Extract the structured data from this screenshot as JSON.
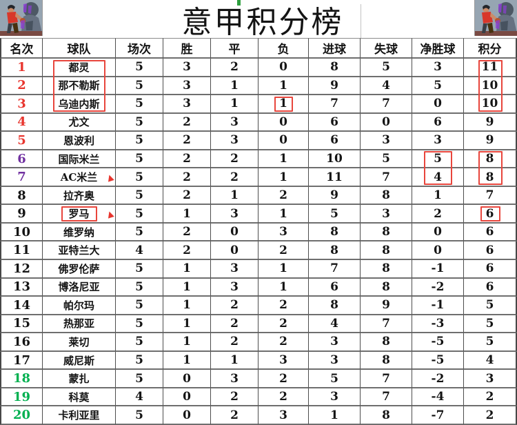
{
  "title": "意甲积分榜",
  "columns": [
    "名次",
    "球队",
    "场次",
    "胜",
    "平",
    "负",
    "进球",
    "失球",
    "净胜球",
    "积分"
  ],
  "column_keys": [
    "rank",
    "team",
    "played",
    "won",
    "drawn",
    "lost",
    "goals_for",
    "goals_against",
    "goal_diff",
    "points"
  ],
  "rows": [
    {
      "rank": "1",
      "rank_color": "red",
      "team": "都灵",
      "played": "5",
      "won": "3",
      "drawn": "2",
      "lost": "0",
      "goals_for": "8",
      "goals_against": "5",
      "goal_diff": "3",
      "points": "11",
      "arrow": false
    },
    {
      "rank": "2",
      "rank_color": "red",
      "team": "那不勒斯",
      "played": "5",
      "won": "3",
      "drawn": "1",
      "lost": "1",
      "goals_for": "9",
      "goals_against": "4",
      "goal_diff": "5",
      "points": "10",
      "arrow": false
    },
    {
      "rank": "3",
      "rank_color": "red",
      "team": "乌迪内斯",
      "played": "5",
      "won": "3",
      "drawn": "1",
      "lost": "1",
      "goals_for": "7",
      "goals_against": "7",
      "goal_diff": "0",
      "points": "10",
      "arrow": false
    },
    {
      "rank": "4",
      "rank_color": "red",
      "team": "尤文",
      "played": "5",
      "won": "2",
      "drawn": "3",
      "lost": "0",
      "goals_for": "6",
      "goals_against": "0",
      "goal_diff": "6",
      "points": "9",
      "arrow": false
    },
    {
      "rank": "5",
      "rank_color": "red",
      "team": "恩波利",
      "played": "5",
      "won": "2",
      "drawn": "3",
      "lost": "0",
      "goals_for": "6",
      "goals_against": "3",
      "goal_diff": "3",
      "points": "9",
      "arrow": false
    },
    {
      "rank": "6",
      "rank_color": "purple",
      "team": "国际米兰",
      "played": "5",
      "won": "2",
      "drawn": "2",
      "lost": "1",
      "goals_for": "10",
      "goals_against": "5",
      "goal_diff": "5",
      "points": "8",
      "arrow": false
    },
    {
      "rank": "7",
      "rank_color": "purple",
      "team": "AC米兰",
      "played": "5",
      "won": "2",
      "drawn": "2",
      "lost": "1",
      "goals_for": "11",
      "goals_against": "7",
      "goal_diff": "4",
      "points": "8",
      "arrow": true
    },
    {
      "rank": "8",
      "rank_color": "black",
      "team": "拉齐奥",
      "played": "5",
      "won": "2",
      "drawn": "1",
      "lost": "2",
      "goals_for": "9",
      "goals_against": "8",
      "goal_diff": "1",
      "points": "7",
      "arrow": false
    },
    {
      "rank": "9",
      "rank_color": "black",
      "team": "罗马",
      "played": "5",
      "won": "1",
      "drawn": "3",
      "lost": "1",
      "goals_for": "5",
      "goals_against": "3",
      "goal_diff": "2",
      "points": "6",
      "arrow": true
    },
    {
      "rank": "10",
      "rank_color": "black",
      "team": "维罗纳",
      "played": "5",
      "won": "2",
      "drawn": "0",
      "lost": "3",
      "goals_for": "8",
      "goals_against": "8",
      "goal_diff": "0",
      "points": "6",
      "arrow": false
    },
    {
      "rank": "11",
      "rank_color": "black",
      "team": "亚特兰大",
      "played": "4",
      "won": "2",
      "drawn": "0",
      "lost": "2",
      "goals_for": "8",
      "goals_against": "8",
      "goal_diff": "0",
      "points": "6",
      "arrow": false
    },
    {
      "rank": "12",
      "rank_color": "black",
      "team": "佛罗伦萨",
      "played": "5",
      "won": "1",
      "drawn": "3",
      "lost": "1",
      "goals_for": "7",
      "goals_against": "8",
      "goal_diff": "-1",
      "points": "6",
      "arrow": false
    },
    {
      "rank": "13",
      "rank_color": "black",
      "team": "博洛尼亚",
      "played": "5",
      "won": "1",
      "drawn": "3",
      "lost": "1",
      "goals_for": "6",
      "goals_against": "8",
      "goal_diff": "-2",
      "points": "6",
      "arrow": false
    },
    {
      "rank": "14",
      "rank_color": "black",
      "team": "帕尔玛",
      "played": "5",
      "won": "1",
      "drawn": "2",
      "lost": "2",
      "goals_for": "8",
      "goals_against": "9",
      "goal_diff": "-1",
      "points": "5",
      "arrow": false
    },
    {
      "rank": "15",
      "rank_color": "black",
      "team": "热那亚",
      "played": "5",
      "won": "1",
      "drawn": "2",
      "lost": "2",
      "goals_for": "4",
      "goals_against": "7",
      "goal_diff": "-3",
      "points": "5",
      "arrow": false
    },
    {
      "rank": "16",
      "rank_color": "black",
      "team": "莱切",
      "played": "5",
      "won": "1",
      "drawn": "2",
      "lost": "2",
      "goals_for": "3",
      "goals_against": "8",
      "goal_diff": "-5",
      "points": "5",
      "arrow": false
    },
    {
      "rank": "17",
      "rank_color": "black",
      "team": "威尼斯",
      "played": "5",
      "won": "1",
      "drawn": "1",
      "lost": "3",
      "goals_for": "3",
      "goals_against": "8",
      "goal_diff": "-5",
      "points": "4",
      "arrow": false
    },
    {
      "rank": "18",
      "rank_color": "green",
      "team": "蒙扎",
      "played": "5",
      "won": "0",
      "drawn": "3",
      "lost": "2",
      "goals_for": "5",
      "goals_against": "7",
      "goal_diff": "-2",
      "points": "3",
      "arrow": false
    },
    {
      "rank": "19",
      "rank_color": "green",
      "team": "科莫",
      "played": "4",
      "won": "0",
      "drawn": "2",
      "lost": "2",
      "goals_for": "3",
      "goals_against": "7",
      "goal_diff": "-4",
      "points": "2",
      "arrow": false
    },
    {
      "rank": "20",
      "rank_color": "green",
      "team": "卡利亚里",
      "played": "5",
      "won": "0",
      "drawn": "2",
      "lost": "3",
      "goals_for": "1",
      "goals_against": "8",
      "goal_diff": "-7",
      "points": "2",
      "arrow": false
    }
  ],
  "highlight_boxes": [
    {
      "column": "team",
      "row_start": 1,
      "row_end": 3,
      "pad_x": 15
    },
    {
      "column": "lost",
      "row_start": 3,
      "row_end": 3,
      "pad_x": 23
    },
    {
      "column": "points",
      "row_start": 1,
      "row_end": 3,
      "pad_x": 21
    },
    {
      "column": "goal_diff",
      "row_start": 6,
      "row_end": 7,
      "pad_x": 17
    },
    {
      "column": "points",
      "row_start": 6,
      "row_end": 7,
      "pad_x": 21
    },
    {
      "column": "team",
      "row_start": 9,
      "row_end": 9,
      "pad_x": 27
    },
    {
      "column": "points",
      "row_start": 9,
      "row_end": 9,
      "pad_x": 24
    }
  ],
  "arrow_glyph": "▲",
  "colors": {
    "rank_top": "#e8352e",
    "rank_european": "#7030a0",
    "rank_relegation": "#00b050",
    "highlight_box": "#e8453c",
    "arrow": "#e8352e"
  }
}
